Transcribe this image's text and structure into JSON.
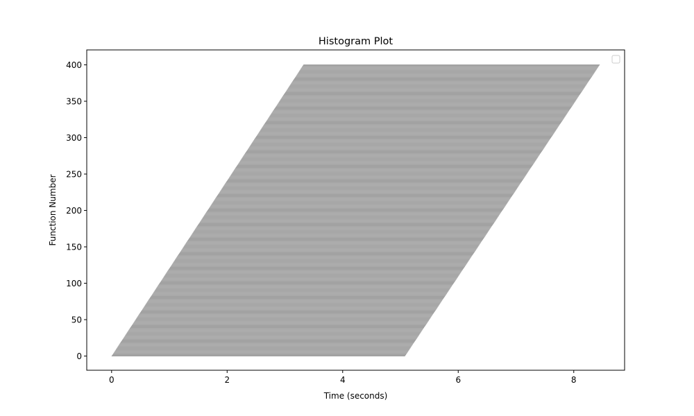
{
  "chart_data": {
    "type": "bar",
    "orientation": "horizontal",
    "title": "Histogram Plot",
    "xlabel": "Time (seconds)",
    "ylabel": "Function Number",
    "xlim": [
      -0.43,
      8.88
    ],
    "ylim": [
      -19.5,
      420.5
    ],
    "xticks": [
      0,
      2,
      4,
      6,
      8
    ],
    "yticks": [
      0,
      50,
      100,
      150,
      200,
      250,
      300,
      350,
      400
    ],
    "bar_color": "#919191",
    "bar_count": 401,
    "bar_start_first": 0.0,
    "bar_start_last": 3.32,
    "bar_end_first": 5.08,
    "bar_end_last": 8.45,
    "legend": {
      "placement": "top-right",
      "entries": []
    },
    "grid": false
  }
}
